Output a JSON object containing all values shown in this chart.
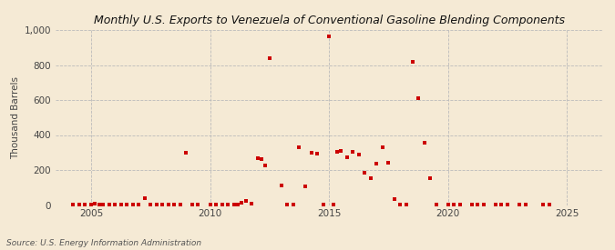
{
  "title": "Monthly U.S. Exports to Venezuela of Conventional Gasoline Blending Components",
  "ylabel": "Thousand Barrels",
  "source": "Source: U.S. Energy Information Administration",
  "background_color": "#f5ead5",
  "plot_bg_color": "#f5ead5",
  "marker_color": "#cc0000",
  "marker": "s",
  "marker_size": 3,
  "xlim": [
    2003.5,
    2026.5
  ],
  "ylim": [
    0,
    1000
  ],
  "yticks": [
    0,
    200,
    400,
    600,
    800,
    1000
  ],
  "xticks": [
    2005,
    2010,
    2015,
    2020,
    2025
  ],
  "title_fontsize": 9,
  "ylabel_fontsize": 7.5,
  "tick_fontsize": 7.5,
  "source_fontsize": 6.5,
  "data": [
    [
      2004.25,
      2
    ],
    [
      2004.5,
      2
    ],
    [
      2004.75,
      2
    ],
    [
      2005.0,
      5
    ],
    [
      2005.17,
      8
    ],
    [
      2005.33,
      4
    ],
    [
      2005.5,
      2
    ],
    [
      2005.75,
      2
    ],
    [
      2006.0,
      2
    ],
    [
      2006.25,
      4
    ],
    [
      2006.5,
      2
    ],
    [
      2006.75,
      2
    ],
    [
      2007.0,
      2
    ],
    [
      2007.25,
      37
    ],
    [
      2007.5,
      2
    ],
    [
      2007.75,
      2
    ],
    [
      2008.0,
      2
    ],
    [
      2008.25,
      2
    ],
    [
      2008.5,
      2
    ],
    [
      2008.75,
      2
    ],
    [
      2009.0,
      298
    ],
    [
      2009.25,
      2
    ],
    [
      2009.5,
      2
    ],
    [
      2010.0,
      2
    ],
    [
      2010.25,
      2
    ],
    [
      2010.5,
      5
    ],
    [
      2010.75,
      5
    ],
    [
      2011.0,
      2
    ],
    [
      2011.17,
      5
    ],
    [
      2011.33,
      15
    ],
    [
      2011.5,
      22
    ],
    [
      2011.75,
      8
    ],
    [
      2012.0,
      265
    ],
    [
      2012.17,
      262
    ],
    [
      2012.33,
      225
    ],
    [
      2012.5,
      840
    ],
    [
      2013.0,
      112
    ],
    [
      2013.25,
      5
    ],
    [
      2013.5,
      2
    ],
    [
      2013.75,
      330
    ],
    [
      2014.0,
      108
    ],
    [
      2014.25,
      298
    ],
    [
      2014.5,
      295
    ],
    [
      2014.75,
      2
    ],
    [
      2015.0,
      965
    ],
    [
      2015.17,
      2
    ],
    [
      2015.33,
      305
    ],
    [
      2015.5,
      308
    ],
    [
      2015.75,
      275
    ],
    [
      2016.0,
      302
    ],
    [
      2016.25,
      287
    ],
    [
      2016.5,
      185
    ],
    [
      2016.75,
      152
    ],
    [
      2017.0,
      238
    ],
    [
      2017.25,
      328
    ],
    [
      2017.5,
      242
    ],
    [
      2017.75,
      32
    ],
    [
      2018.0,
      5
    ],
    [
      2018.25,
      2
    ],
    [
      2018.5,
      820
    ],
    [
      2018.75,
      612
    ],
    [
      2019.0,
      358
    ],
    [
      2019.25,
      152
    ],
    [
      2019.5,
      5
    ],
    [
      2020.0,
      5
    ],
    [
      2020.25,
      5
    ],
    [
      2020.5,
      5
    ],
    [
      2021.0,
      2
    ],
    [
      2021.25,
      5
    ],
    [
      2021.5,
      2
    ],
    [
      2022.0,
      2
    ],
    [
      2022.25,
      2
    ],
    [
      2022.5,
      5
    ],
    [
      2023.0,
      2
    ],
    [
      2023.25,
      2
    ],
    [
      2024.0,
      2
    ],
    [
      2024.25,
      2
    ]
  ]
}
